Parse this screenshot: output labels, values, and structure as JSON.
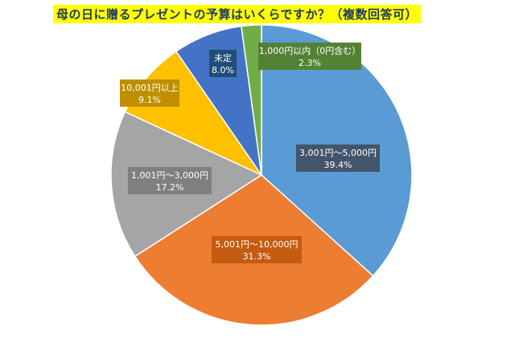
{
  "chart_data": {
    "type": "pie",
    "title": "母の日に贈るプレゼントの予算はいくらですか？（複数回答可）",
    "start": "top",
    "direction": "clockwise",
    "slices": [
      {
        "label": "3,001円～5,000円",
        "value": 39.4,
        "value_label": "39.4%",
        "color": "#5b9bd5",
        "box_color": "#44546a"
      },
      {
        "label": "5,001円～10,000円",
        "value": 31.3,
        "value_label": "31.3%",
        "color": "#ed7d31",
        "box_color": "#c55a11"
      },
      {
        "label": "1,001円～3,000円",
        "value": 17.2,
        "value_label": "17.2%",
        "color": "#a5a5a5",
        "box_color": "#7f7f7f"
      },
      {
        "label": "10,001円以上",
        "value": 9.1,
        "value_label": "9.1%",
        "color": "#ffc000",
        "box_color": "#bf8f00"
      },
      {
        "label": "未定",
        "value": 8.0,
        "value_label": "8.0%",
        "color": "#4472c4",
        "box_color": "#1f4e79"
      },
      {
        "label": "1,000円以内（0円含む）",
        "value": 2.3,
        "value_label": "2.3%",
        "color": "#70ad47",
        "box_color": "#548235"
      }
    ]
  }
}
